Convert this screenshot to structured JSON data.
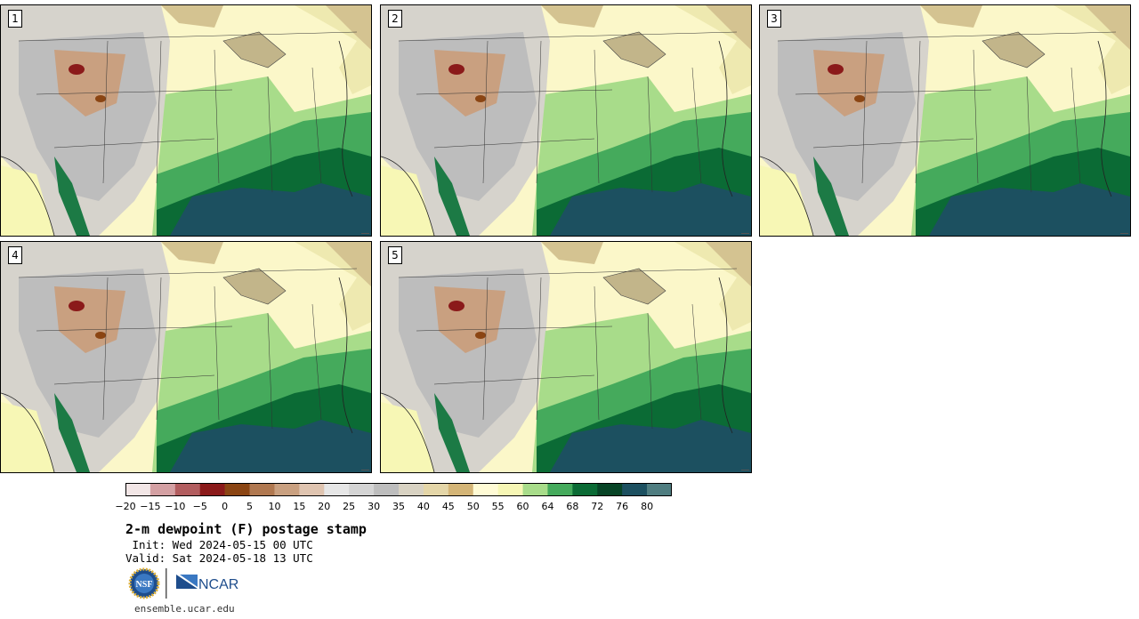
{
  "panels": [
    {
      "label": "1"
    },
    {
      "label": "2"
    },
    {
      "label": "3"
    },
    {
      "label": "4"
    },
    {
      "label": "5"
    }
  ],
  "colorbar": {
    "colors": [
      "#f2e6e6",
      "#d4a0a3",
      "#b25d5f",
      "#8b1a1a",
      "#8b4513",
      "#b07850",
      "#c9a080",
      "#dfc4b0",
      "#e6e6e6",
      "#d4d4d4",
      "#bdbdbd",
      "#d8d2c2",
      "#e4d6a8",
      "#d4b577",
      "#fffbd5",
      "#f7f7b5",
      "#a8dc8a",
      "#45aa5c",
      "#0b6b35",
      "#084426",
      "#1c5060",
      "#4f7d80"
    ],
    "labels": [
      "−20",
      "−15",
      "−10",
      "−5",
      "0",
      "5",
      "10",
      "15",
      "20",
      "25",
      "30",
      "35",
      "40",
      "45",
      "50",
      "55",
      "60",
      "64",
      "68",
      "72",
      "76",
      "80"
    ]
  },
  "title": "2-m dewpoint (F) postage stamp",
  "init_line": " Init: Wed 2024-05-15 00 UTC",
  "valid_line": "Valid: Sat 2024-05-18 13 UTC",
  "logos": {
    "nsf": "NSF",
    "ncar": "NCAR"
  },
  "footer_url": "ensemble.ucar.edu"
}
